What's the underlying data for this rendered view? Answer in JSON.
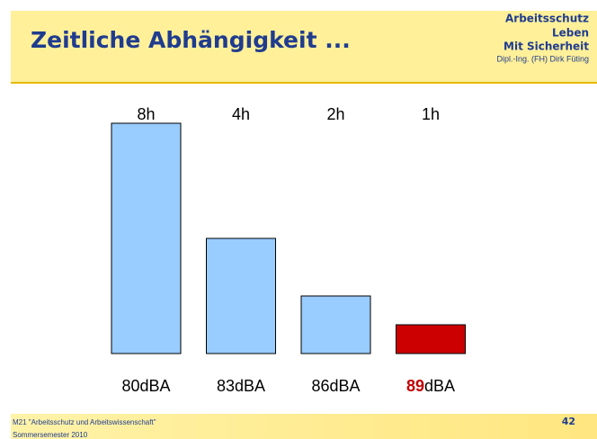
{
  "header": {
    "title": "Zeitliche Abhängigkeit ...",
    "brand": [
      "Arbeitsschutz",
      "Leben",
      "Mit Sicherheit"
    ],
    "author": "Dipl.-Ing. (FH) Dirk Füting"
  },
  "footer": {
    "course": "M21 \"Arbeitsschutz und Arbeitswissenschaft\"",
    "term": "Sommersemester 2010",
    "page": "42"
  },
  "chart_data": {
    "type": "bar",
    "categories": [
      [
        {
          "text": "80dBA"
        }
      ],
      [
        {
          "text": "83dBA"
        }
      ],
      [
        {
          "text": "86dBA"
        }
      ],
      [
        {
          "text": "89",
          "color": "#c00000"
        },
        {
          "text": "dBA"
        }
      ]
    ],
    "values": [
      8,
      4,
      2,
      1
    ],
    "value_labels": [
      "8h",
      "4h",
      "2h",
      "1h"
    ],
    "colors": [
      "#99ccff",
      "#99ccff",
      "#99ccff",
      "#cc0000"
    ]
  }
}
